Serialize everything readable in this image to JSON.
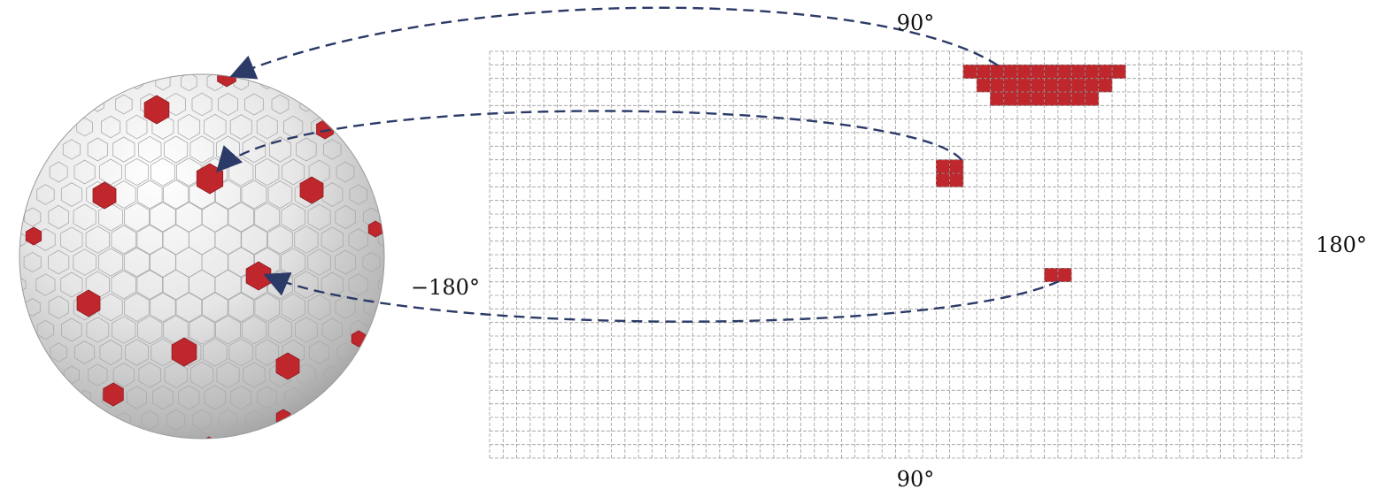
{
  "figure": {
    "labels": {
      "top": "90°",
      "bottom": "90°",
      "left": "−180°",
      "right": "180°"
    },
    "colors": {
      "highlight": "#c0272d",
      "arrow": "#2b3a67",
      "grid": "#9a9a9a",
      "sphere_base": "#e3e3e3"
    },
    "grid": {
      "columns": 60,
      "rows": 30
    },
    "highlight_regions": [
      {
        "name": "polar-region",
        "rows": [
          {
            "row": 1,
            "from": 35,
            "to": 46
          },
          {
            "row": 2,
            "from": 36,
            "to": 45
          },
          {
            "row": 3,
            "from": 37,
            "to": 44
          }
        ]
      },
      {
        "name": "mid-latitude-block",
        "rows": [
          {
            "row": 8,
            "from": 33,
            "to": 34
          },
          {
            "row": 9,
            "from": 33,
            "to": 34
          }
        ]
      },
      {
        "name": "equatorial-block",
        "rows": [
          {
            "row": 16,
            "from": 41,
            "to": 42
          }
        ]
      }
    ],
    "sphere": {
      "highlighted_cells": 16
    }
  }
}
